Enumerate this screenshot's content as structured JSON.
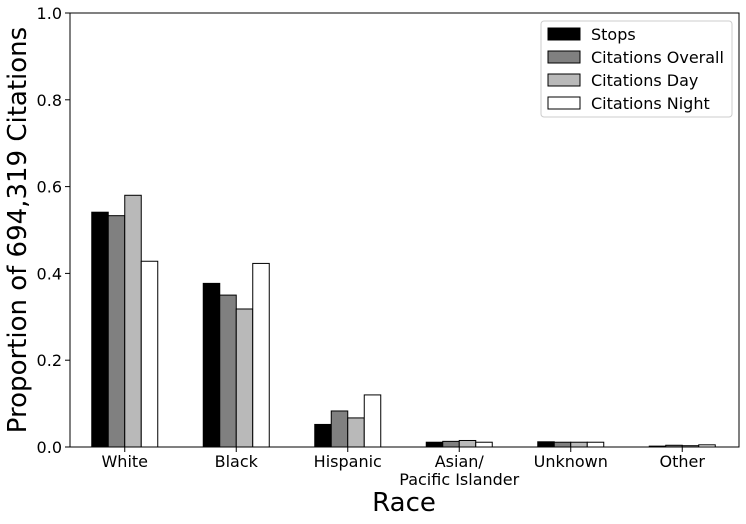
{
  "chart_data": {
    "type": "bar",
    "title": "",
    "xlabel": "Race",
    "ylabel": "Proportion of  694,319 Citations",
    "ylim": [
      0,
      1.0
    ],
    "yticks": [
      "0.0",
      "0.2",
      "0.4",
      "0.6",
      "0.8",
      "1.0"
    ],
    "ytick_values": [
      0,
      0.2,
      0.4,
      0.6,
      0.8,
      1.0
    ],
    "categories": [
      "White",
      "Black",
      "Hispanic",
      "Asian/\nPacific Islander",
      "Unknown",
      "Other"
    ],
    "grid": false,
    "legend_position": "top-right",
    "series": [
      {
        "name": "Stops",
        "color": "#000000",
        "values": [
          0.541,
          0.377,
          0.052,
          0.011,
          0.012,
          0.002
        ]
      },
      {
        "name": "Citations Overall",
        "color": "#808080",
        "values": [
          0.533,
          0.35,
          0.083,
          0.013,
          0.011,
          0.004
        ]
      },
      {
        "name": "Citations Day",
        "color": "#b9b9b9",
        "values": [
          0.58,
          0.318,
          0.067,
          0.015,
          0.011,
          0.003
        ]
      },
      {
        "name": "Citations Night",
        "color": "#ffffff",
        "values": [
          0.428,
          0.423,
          0.12,
          0.011,
          0.011,
          0.005
        ]
      }
    ]
  }
}
